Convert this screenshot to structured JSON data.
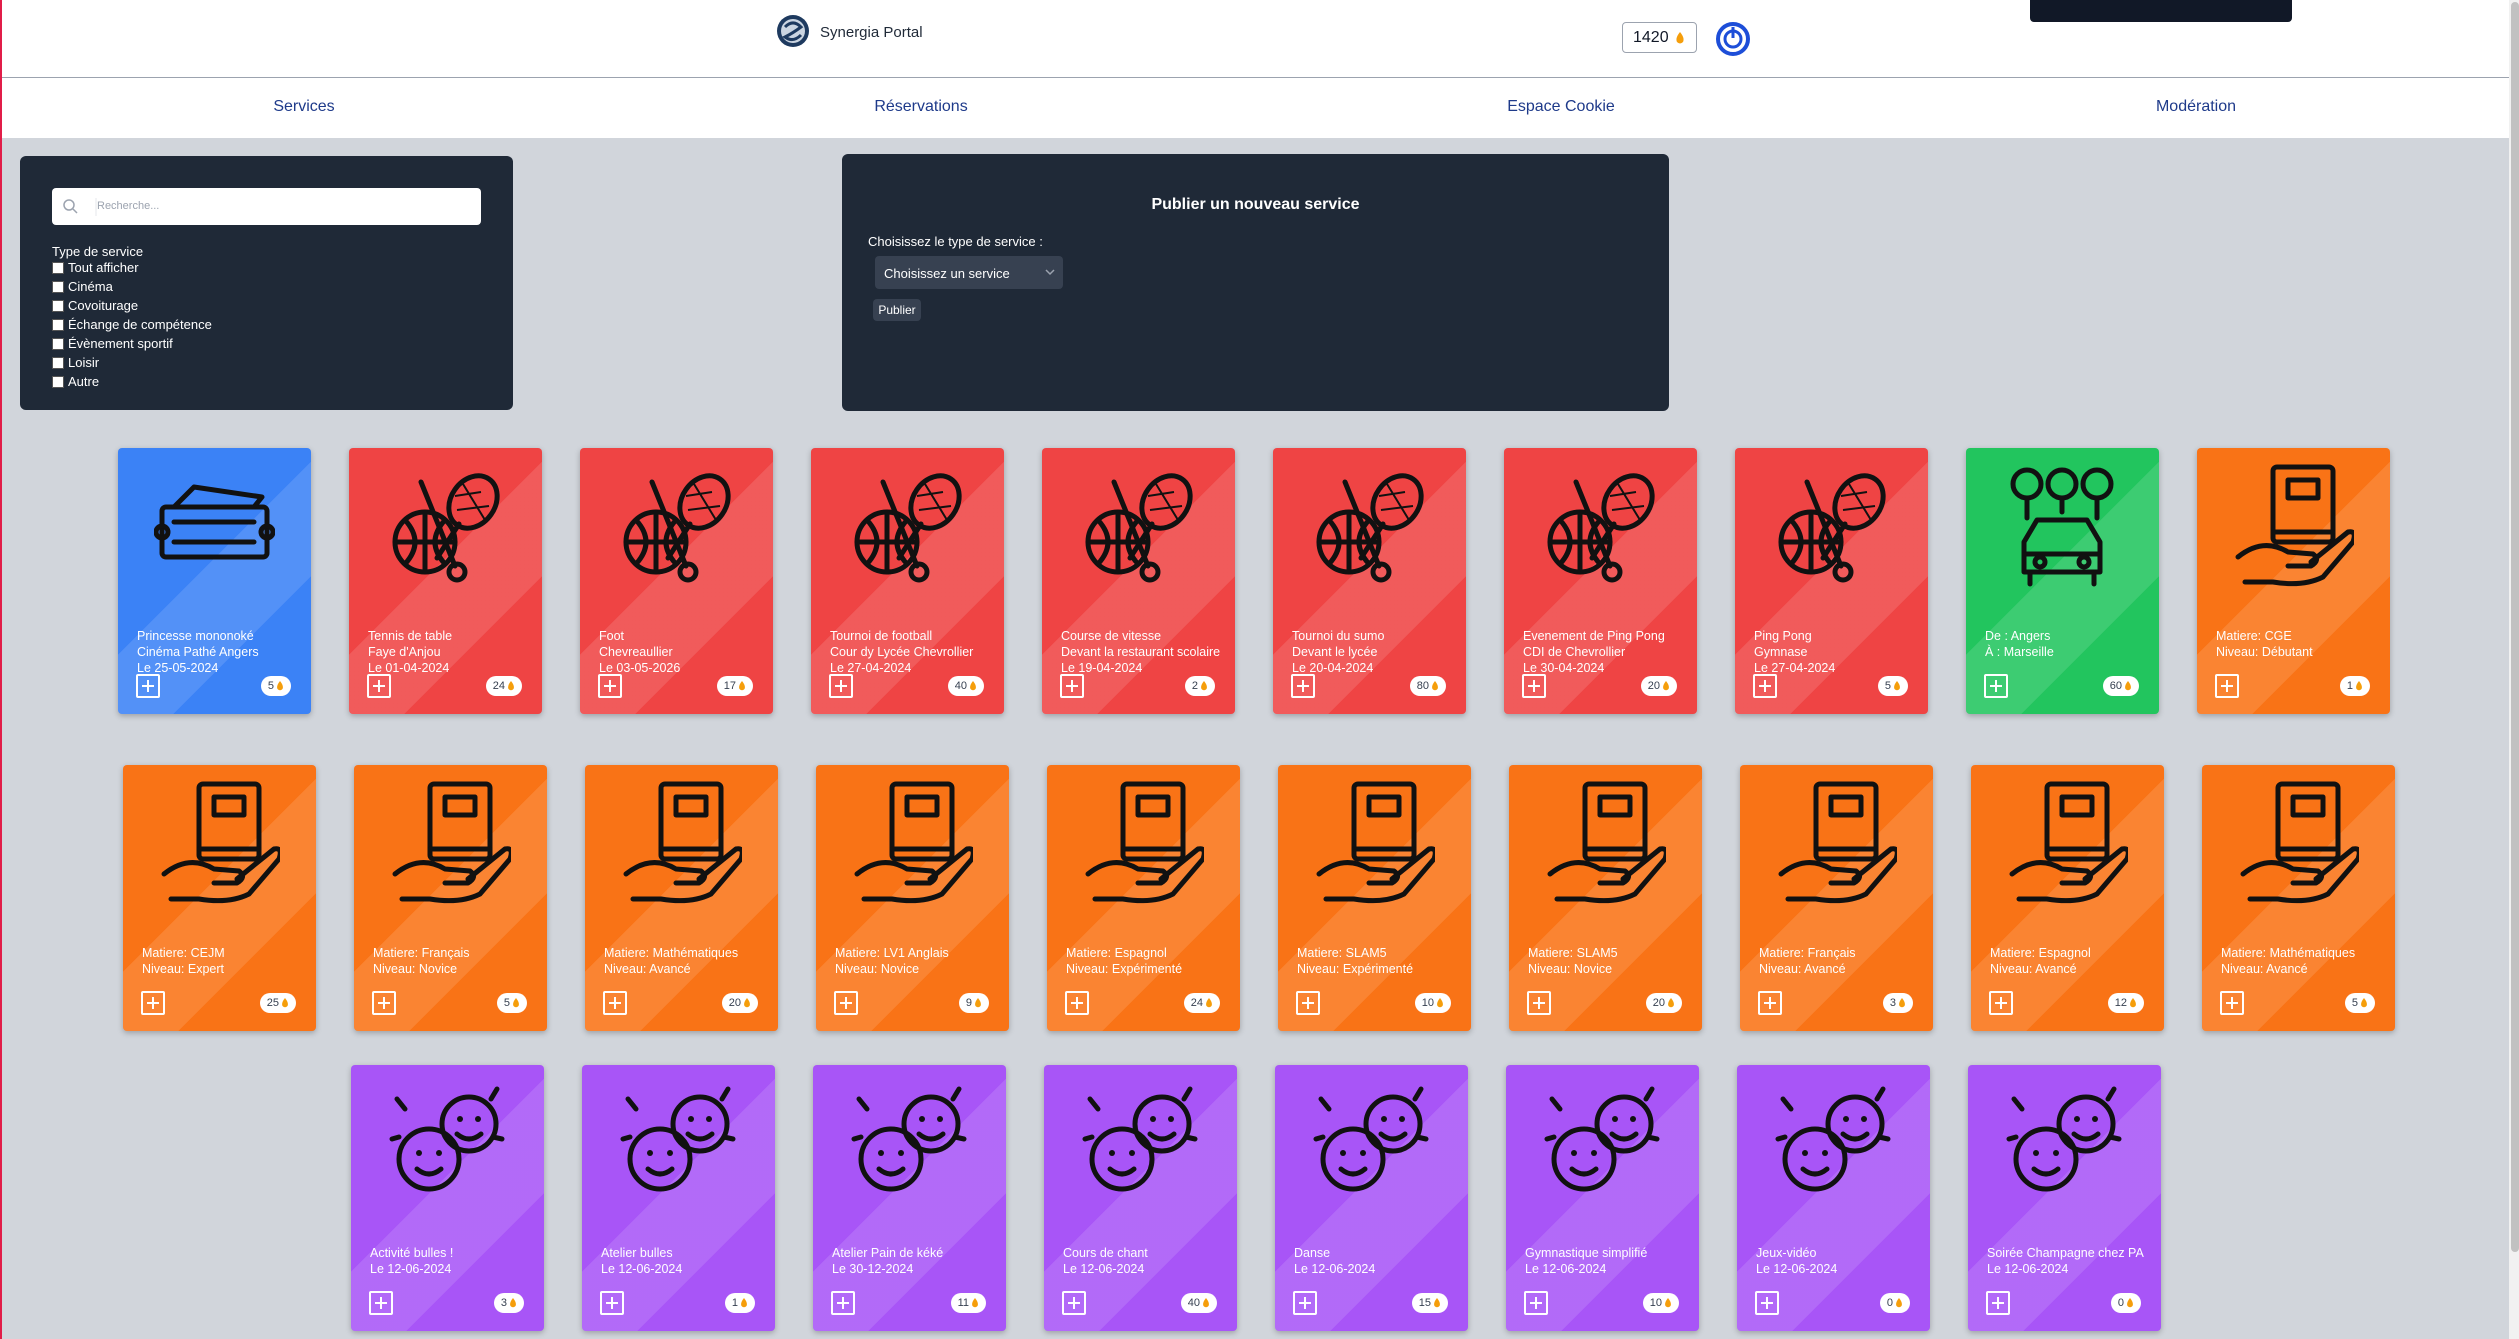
{
  "header": {
    "logo_text": "Synergia Portal",
    "balance": "1420"
  },
  "nav": [
    "Services",
    "Réservations",
    "Espace Cookie",
    "Modération"
  ],
  "filter": {
    "search_placeholder": "Recherche...",
    "heading": "Type de service",
    "options": [
      "Tout afficher",
      "Cinéma",
      "Covoiturage",
      "Échange de compétence",
      "Évènement sportif",
      "Loisir",
      "Autre"
    ]
  },
  "publish": {
    "title": "Publier un nouveau service",
    "label": "Choisissez le type de service :",
    "select": "Choisissez un service",
    "button": "Publier"
  },
  "cards": [
    [
      {
        "type": "cinema",
        "color": "#3b82f6",
        "lines": [
          "Princesse mononoké",
          "Cinéma Pathé Angers",
          "Le 25-05-2024"
        ],
        "price": "5"
      },
      {
        "type": "sport",
        "color": "#ef4444",
        "lines": [
          "Tennis de table",
          "Faye d'Anjou",
          "Le 01-04-2024"
        ],
        "price": "24"
      },
      {
        "type": "sport",
        "color": "#ef4444",
        "lines": [
          "Foot",
          "Chevreaullier",
          "Le 03-05-2026"
        ],
        "price": "17"
      },
      {
        "type": "sport",
        "color": "#ef4444",
        "lines": [
          "Tournoi de football",
          "Cour dy Lycée Chevrollier",
          "Le 27-04-2024"
        ],
        "price": "40"
      },
      {
        "type": "sport",
        "color": "#ef4444",
        "lines": [
          "Course de vitesse",
          "Devant la restaurant scolaire",
          "Le 19-04-2024"
        ],
        "price": "2"
      },
      {
        "type": "sport",
        "color": "#ef4444",
        "lines": [
          "Tournoi du sumo",
          "Devant le lycée",
          "Le 20-04-2024"
        ],
        "price": "80"
      },
      {
        "type": "sport",
        "color": "#ef4444",
        "lines": [
          "Evenement de Ping Pong",
          "CDI de Chevrollier",
          "Le 30-04-2024"
        ],
        "price": "20"
      },
      {
        "type": "sport",
        "color": "#ef4444",
        "lines": [
          "Ping Pong",
          "Gymnase",
          "Le 27-04-2024"
        ],
        "price": "5"
      },
      {
        "type": "carpool",
        "color": "#22c55e",
        "lines": [
          "De : Angers",
          "À : Marseille"
        ],
        "price": "60"
      },
      {
        "type": "skill",
        "color": "#f97316",
        "lines": [
          "Matiere: CGE",
          "Niveau: Débutant"
        ],
        "price": "1"
      }
    ],
    [
      {
        "type": "skill",
        "color": "#f97316",
        "lines": [
          "Matiere: CEJM",
          "Niveau: Expert"
        ],
        "price": "25"
      },
      {
        "type": "skill",
        "color": "#f97316",
        "lines": [
          "Matiere: Français",
          "Niveau: Novice"
        ],
        "price": "5"
      },
      {
        "type": "skill",
        "color": "#f97316",
        "lines": [
          "Matiere: Mathématiques",
          "Niveau: Avancé"
        ],
        "price": "20"
      },
      {
        "type": "skill",
        "color": "#f97316",
        "lines": [
          "Matiere: LV1 Anglais",
          "Niveau: Novice"
        ],
        "price": "9"
      },
      {
        "type": "skill",
        "color": "#f97316",
        "lines": [
          "Matiere: Espagnol",
          "Niveau: Expérimenté"
        ],
        "price": "24"
      },
      {
        "type": "skill",
        "color": "#f97316",
        "lines": [
          "Matiere: SLAM5",
          "Niveau: Expérimenté"
        ],
        "price": "10"
      },
      {
        "type": "skill",
        "color": "#f97316",
        "lines": [
          "Matiere: SLAM5",
          "Niveau: Novice"
        ],
        "price": "20"
      },
      {
        "type": "skill",
        "color": "#f97316",
        "lines": [
          "Matiere: Français",
          "Niveau: Avancé"
        ],
        "price": "3"
      },
      {
        "type": "skill",
        "color": "#f97316",
        "lines": [
          "Matiere: Espagnol",
          "Niveau: Avancé"
        ],
        "price": "12"
      },
      {
        "type": "skill",
        "color": "#f97316",
        "lines": [
          "Matiere: Mathématiques",
          "Niveau: Avancé"
        ],
        "price": "5"
      }
    ],
    [
      {
        "type": "leisure",
        "color": "#a855f7",
        "lines": [
          "Activité bulles !",
          "Le 12-06-2024"
        ],
        "price": "3"
      },
      {
        "type": "leisure",
        "color": "#a855f7",
        "lines": [
          "Atelier bulles",
          "Le 12-06-2024"
        ],
        "price": "1"
      },
      {
        "type": "leisure",
        "color": "#a855f7",
        "lines": [
          "Atelier Pain de kéké",
          "Le 30-12-2024"
        ],
        "price": "11"
      },
      {
        "type": "leisure",
        "color": "#a855f7",
        "lines": [
          "Cours de chant",
          "Le 12-06-2024"
        ],
        "price": "40"
      },
      {
        "type": "leisure",
        "color": "#a855f7",
        "lines": [
          "Danse",
          "Le 12-06-2024"
        ],
        "price": "15"
      },
      {
        "type": "leisure",
        "color": "#a855f7",
        "lines": [
          "Gymnastique simplifié",
          "Le 12-06-2024"
        ],
        "price": "10"
      },
      {
        "type": "leisure",
        "color": "#a855f7",
        "lines": [
          "Jeux-vidéo",
          "Le 12-06-2024"
        ],
        "price": "0"
      },
      {
        "type": "leisure",
        "color": "#a855f7",
        "lines": [
          "Soirée Champagne chez PA",
          "Le 12-06-2024"
        ],
        "price": "0"
      }
    ]
  ]
}
